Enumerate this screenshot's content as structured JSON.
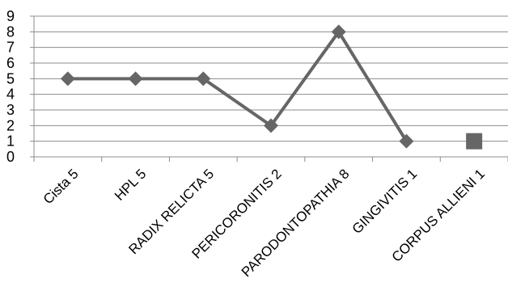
{
  "chart_data": {
    "type": "line",
    "categories": [
      "Cista 5",
      "HPL 5",
      "RADIX RELICTA 5",
      "PERICORONITIS 2",
      "PARODONTOPATHIA 8",
      "GINGIVITIS 1",
      "CORPUS ALLIENI 1"
    ],
    "series": [
      {
        "values": [
          5,
          5,
          5,
          2,
          8,
          1,
          1
        ],
        "marker": "diamond",
        "color": "#666666",
        "note_last_point_marker": "square"
      }
    ],
    "ylim": [
      0,
      9
    ],
    "yticks": [
      0,
      1,
      2,
      3,
      4,
      5,
      6,
      7,
      8,
      9
    ],
    "grid": true,
    "title": "",
    "xlabel": "",
    "ylabel": ""
  }
}
